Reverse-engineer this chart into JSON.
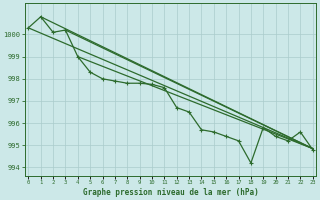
{
  "background_color": "#cce8e8",
  "grid_color": "#aacccc",
  "line_color": "#2d6b2d",
  "xlabel": "Graphe pression niveau de la mer (hPa)",
  "ylim": [
    993.6,
    1001.4
  ],
  "yticks": [
    994,
    995,
    996,
    997,
    998,
    999,
    1000
  ],
  "xlim": [
    -0.3,
    23.3
  ],
  "xticks": [
    0,
    1,
    2,
    3,
    4,
    5,
    6,
    7,
    8,
    9,
    10,
    11,
    12,
    13,
    14,
    15,
    16,
    17,
    18,
    19,
    20,
    21,
    22,
    23
  ],
  "measured": [
    1000.3,
    1000.8,
    1000.1,
    1000.2,
    999.0,
    998.3,
    998.0,
    997.9,
    997.8,
    997.8,
    997.75,
    997.6,
    996.7,
    996.5,
    995.7,
    995.6,
    995.4,
    995.2,
    994.2,
    995.8,
    995.4,
    995.2,
    995.6,
    994.8
  ],
  "straight_lines": [
    {
      "x0": 0,
      "y0": 1000.3,
      "x1": 23,
      "y1": 994.85
    },
    {
      "x0": 1,
      "y0": 1000.8,
      "x1": 23,
      "y1": 994.85
    },
    {
      "x0": 3,
      "y0": 1000.2,
      "x1": 23,
      "y1": 994.85
    },
    {
      "x0": 4,
      "y0": 999.0,
      "x1": 23,
      "y1": 994.85
    }
  ]
}
